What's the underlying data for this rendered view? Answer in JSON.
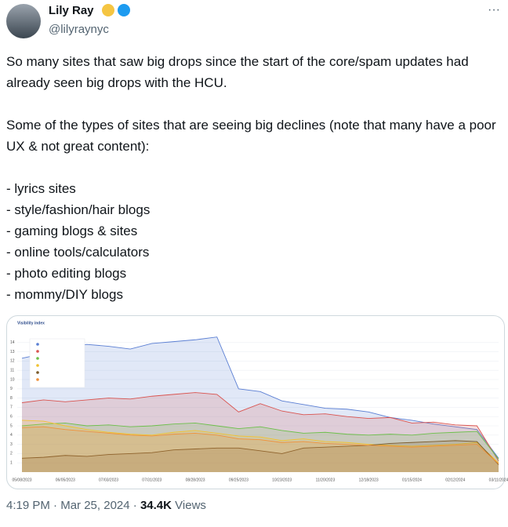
{
  "tweet": {
    "name": "Lily Ray",
    "handle": "@lilyraynyc",
    "paragraphs": [
      "So many sites that saw big drops since the start of the core/spam updates had already seen big drops with the HCU.",
      "Some of the types of sites that are seeing big declines (note that many have a poor UX & not great content):"
    ],
    "list": [
      "- lyrics sites",
      "- style/fashion/hair blogs",
      "- gaming blogs & sites",
      "- online tools/calculators",
      "- photo editing blogs",
      "- mommy/DIY blogs"
    ],
    "time": "4:19 PM",
    "date": "Mar 25, 2024",
    "views": "34.4K",
    "views_label": "Views"
  },
  "chart_data": {
    "type": "area",
    "title": "Visibility index",
    "categories": [
      "05/08/2023",
      null,
      "06/05/2023",
      null,
      "07/03/2023",
      null,
      "07/31/2023",
      null,
      "08/28/2023",
      null,
      "09/25/2023",
      null,
      "10/23/2023",
      null,
      "11/20/2023",
      null,
      "12/18/2023",
      null,
      "01/15/2024",
      null,
      "02/12/2024",
      null,
      "03/11/2024"
    ],
    "ylim": [
      0,
      15
    ],
    "yticks": [
      1,
      2,
      3,
      4,
      5,
      6,
      7,
      8,
      9,
      10,
      11,
      12,
      13,
      14
    ],
    "grid": true,
    "series": [
      {
        "color": "#5b7fd3",
        "values": [
          12.3,
          12.8,
          13.6,
          13.8,
          13.6,
          13.3,
          13.9,
          14.1,
          14.3,
          14.6,
          9.0,
          8.7,
          7.7,
          7.3,
          6.9,
          6.8,
          6.5,
          5.9,
          5.6,
          5.2,
          4.9,
          4.6,
          1.5
        ]
      },
      {
        "color": "#d9534f",
        "values": [
          7.5,
          7.8,
          7.6,
          7.8,
          8.0,
          7.9,
          8.2,
          8.4,
          8.6,
          8.4,
          6.5,
          7.4,
          6.6,
          6.2,
          6.3,
          6.0,
          5.8,
          5.9,
          5.3,
          5.4,
          5.1,
          5.0,
          1.2
        ]
      },
      {
        "color": "#6cbf4a",
        "values": [
          5.0,
          5.2,
          5.3,
          5.0,
          5.1,
          4.9,
          5.0,
          5.2,
          5.3,
          5.0,
          4.7,
          4.9,
          4.5,
          4.2,
          4.3,
          4.1,
          4.0,
          4.1,
          4.0,
          4.2,
          4.3,
          4.4,
          1.4
        ]
      },
      {
        "color": "#f2c230",
        "values": [
          5.6,
          5.5,
          5.0,
          4.6,
          4.3,
          4.1,
          4.0,
          4.3,
          4.5,
          4.2,
          3.9,
          3.8,
          3.4,
          3.6,
          3.3,
          3.2,
          3.0,
          2.9,
          2.8,
          2.9,
          3.0,
          3.2,
          1.0
        ]
      },
      {
        "color": "#7a5a2a",
        "values": [
          1.5,
          1.6,
          1.8,
          1.7,
          1.9,
          2.0,
          2.1,
          2.4,
          2.5,
          2.6,
          2.6,
          2.3,
          2.0,
          2.6,
          2.7,
          2.8,
          2.9,
          3.1,
          3.2,
          3.3,
          3.4,
          3.3,
          0.8
        ]
      },
      {
        "color": "#f0913a",
        "values": [
          4.8,
          4.9,
          4.6,
          4.4,
          4.2,
          4.0,
          3.9,
          4.1,
          4.2,
          4.0,
          3.6,
          3.5,
          3.2,
          3.3,
          3.1,
          3.0,
          2.9,
          2.8,
          2.7,
          2.8,
          2.9,
          3.0,
          0.9
        ]
      }
    ]
  }
}
